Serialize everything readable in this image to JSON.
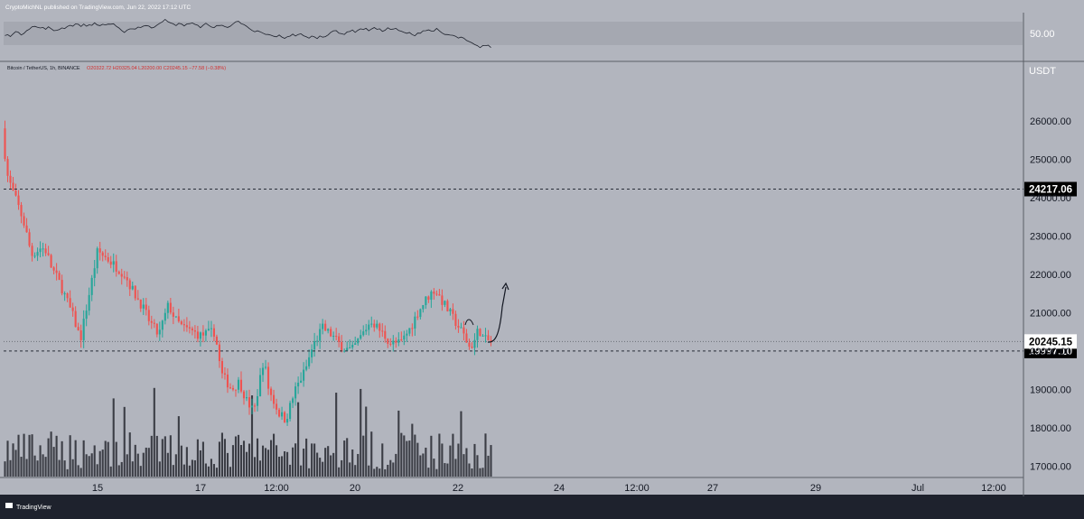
{
  "header": {
    "published_by": "CryptoMichNL published on TradingView.com, Jun 22, 2022 17:12 UTC"
  },
  "symbol_info": {
    "symbol": "Bitcoin / TetherUS, 1h, BINANCE",
    "ohlc": "O20322.72  H20325.04  L20200.00  C20245.15  −77.58 (−0.38%)"
  },
  "footer": {
    "logo_text": "TradingView"
  },
  "colors": {
    "background": "#b2b5be",
    "frame": "#1e222d",
    "up": "#26a69a",
    "down": "#ef5350",
    "wick": "#3a3d46",
    "volume": "#3b3d45",
    "rsi_band": "#a5a8b1",
    "rsi_line": "#1e222d",
    "axis_text": "#131722",
    "ohlc_text": "#d32f2f"
  },
  "chart_data": {
    "type": "candlestick",
    "symbol": "Bitcoin / TetherUS",
    "interval": "1h",
    "exchange": "BINANCE",
    "y_unit": "USDT",
    "ylim": [
      16700,
      27500
    ],
    "y_ticks": [
      "17000.00",
      "18000.00",
      "19000.00",
      "20000.00",
      "21000.00",
      "22000.00",
      "23000.00",
      "24000.00",
      "25000.00",
      "26000.00"
    ],
    "x_ticks": [
      "15",
      "17",
      "12:00",
      "20",
      "22",
      "24",
      "12:00",
      "27",
      "29",
      "Jul",
      "12:00"
    ],
    "last_price": "20245.15",
    "horizontal_levels": [
      {
        "value": 24217.06,
        "label": "24217.06",
        "style": "dashed"
      },
      {
        "value": 19997.1,
        "label": "19997.10",
        "style": "dashed"
      }
    ],
    "price_path": [
      [
        25800,
        0
      ],
      [
        24600,
        0.01
      ],
      [
        24200,
        0.02
      ],
      [
        23700,
        0.035
      ],
      [
        23300,
        0.045
      ],
      [
        22500,
        0.06
      ],
      [
        22700,
        0.08
      ],
      [
        22600,
        0.09
      ],
      [
        22200,
        0.1
      ],
      [
        21700,
        0.12
      ],
      [
        20900,
        0.145
      ],
      [
        20300,
        0.16
      ],
      [
        21300,
        0.175
      ],
      [
        22600,
        0.195
      ],
      [
        22400,
        0.215
      ],
      [
        22000,
        0.25
      ],
      [
        21500,
        0.27
      ],
      [
        21200,
        0.285
      ],
      [
        20800,
        0.3
      ],
      [
        20400,
        0.32
      ],
      [
        21200,
        0.34
      ],
      [
        20800,
        0.355
      ],
      [
        20600,
        0.37
      ],
      [
        20500,
        0.39
      ],
      [
        20400,
        0.405
      ],
      [
        20500,
        0.435
      ],
      [
        19400,
        0.448
      ],
      [
        19000,
        0.47
      ],
      [
        19200,
        0.485
      ],
      [
        18700,
        0.5
      ],
      [
        18400,
        0.515
      ],
      [
        19800,
        0.535
      ],
      [
        19000,
        0.545
      ],
      [
        18400,
        0.565
      ],
      [
        18200,
        0.58
      ],
      [
        19000,
        0.6
      ],
      [
        19500,
        0.62
      ],
      [
        20100,
        0.635
      ],
      [
        20600,
        0.655
      ],
      [
        20400,
        0.675
      ],
      [
        20100,
        0.695
      ],
      [
        20000,
        0.715
      ],
      [
        20400,
        0.735
      ],
      [
        20800,
        0.755
      ],
      [
        20500,
        0.775
      ],
      [
        20200,
        0.795
      ],
      [
        20200,
        0.815
      ],
      [
        20600,
        0.835
      ],
      [
        21000,
        0.85
      ],
      [
        21400,
        0.87
      ],
      [
        21600,
        0.885
      ],
      [
        21300,
        0.9
      ],
      [
        21000,
        0.915
      ],
      [
        20700,
        0.93
      ],
      [
        20400,
        0.945
      ],
      [
        20100,
        0.955
      ],
      [
        20200,
        0.965
      ],
      [
        20600,
        0.975
      ],
      [
        20300,
        0.985
      ],
      [
        20245,
        1.0
      ]
    ],
    "annotation": "hand-drawn arrow projecting from ~20200 up to ~21700",
    "rsi": {
      "level_label": "50.00",
      "band_upper": 70,
      "band_lower": 30
    }
  }
}
